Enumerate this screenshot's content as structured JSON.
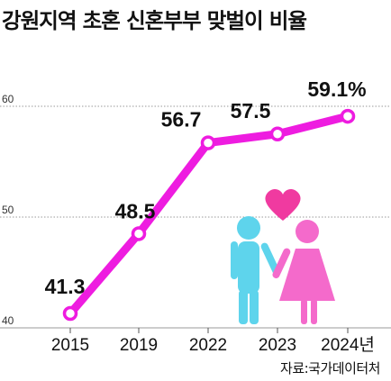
{
  "title": "강원지역 초혼 신혼부부 맞벌이 비율",
  "source": "자료:국가데이터처",
  "colors": {
    "line": "#ee1ce0",
    "point_fill": "#ffffff",
    "grid": "#9a9a9a",
    "heart": "#f03aa0",
    "groom": "#5ed4ec",
    "bride": "#f46acb"
  },
  "illustration": {
    "heart": "heart-icon",
    "groom": "groom-icon",
    "bride": "bride-icon"
  },
  "chart_data": {
    "type": "line",
    "title": "강원지역 초혼 신혼부부 맞벌이 비율",
    "categories": [
      "2015",
      "2019",
      "2022",
      "2023",
      "2024년"
    ],
    "values": [
      41.3,
      48.5,
      56.7,
      57.5,
      59.1
    ],
    "data_labels": [
      "41.3",
      "48.5",
      "56.7",
      "57.5",
      "59.1%"
    ],
    "ylim": [
      40,
      60
    ],
    "yticks": [
      40,
      50,
      60
    ],
    "grid": true
  }
}
